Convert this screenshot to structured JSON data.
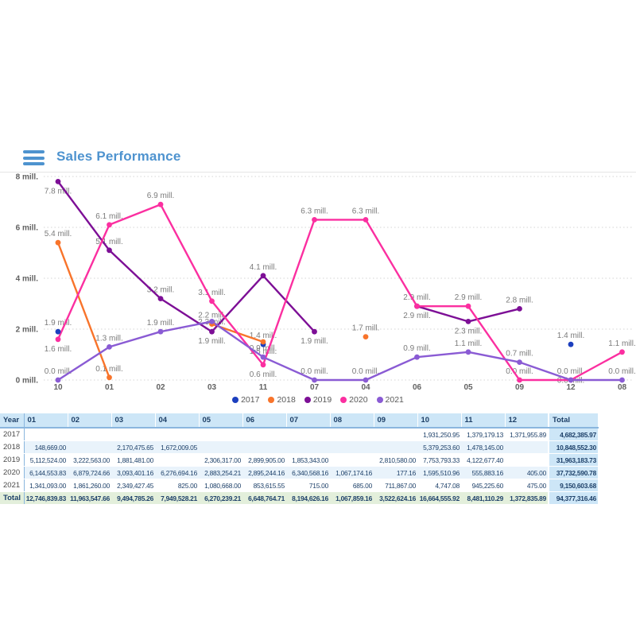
{
  "header": {
    "title": "Sales Performance",
    "accent_color": "#4e93cf"
  },
  "chart_data": {
    "type": "line",
    "title": "",
    "xlabel": "",
    "ylabel": "",
    "ylim": [
      0,
      8
    ],
    "grid": "dotted-horizontal",
    "legend_position": "bottom",
    "value_unit": "mill.",
    "categories": [
      "10",
      "01",
      "02",
      "03",
      "11",
      "07",
      "04",
      "06",
      "05",
      "09",
      "12",
      "08"
    ],
    "y_ticks": [
      {
        "v": 0,
        "label": "0 mill."
      },
      {
        "v": 2,
        "label": "2 mill."
      },
      {
        "v": 4,
        "label": "4 mill."
      },
      {
        "v": 6,
        "label": "6 mill."
      },
      {
        "v": 8,
        "label": "8 mill."
      }
    ],
    "series": [
      {
        "name": "2017",
        "color": "#1c3fbe",
        "values": [
          1.9,
          null,
          null,
          null,
          1.4,
          null,
          null,
          null,
          null,
          null,
          1.4,
          null
        ],
        "label_pos": [
          "a",
          null,
          null,
          null,
          "a",
          null,
          null,
          null,
          null,
          null,
          "a",
          null
        ]
      },
      {
        "name": "2018",
        "color": "#f8742b",
        "values": [
          5.4,
          0.1,
          null,
          2.2,
          1.5,
          null,
          1.7,
          null,
          null,
          null,
          null,
          null
        ],
        "label_pos": [
          "a",
          "a",
          null,
          "a",
          "b",
          null,
          "a",
          null,
          null,
          null,
          null,
          null
        ]
      },
      {
        "name": "2019",
        "color": "#7d0f96",
        "values": [
          7.8,
          5.1,
          3.2,
          1.9,
          4.1,
          1.9,
          null,
          2.9,
          2.3,
          2.8,
          null,
          null
        ],
        "label_pos": [
          "b",
          "a",
          "a",
          "b",
          "a",
          "b",
          null,
          "b",
          "b",
          "a",
          null,
          null
        ]
      },
      {
        "name": "2020",
        "color": "#fb2fa0",
        "values": [
          1.6,
          6.1,
          6.9,
          3.1,
          0.6,
          6.3,
          6.3,
          2.9,
          2.9,
          0.0,
          0.0,
          1.1
        ],
        "label_pos": [
          "b",
          "a",
          "a",
          "a",
          "b",
          "a",
          "a",
          "a",
          "a",
          "a",
          "o",
          "a"
        ]
      },
      {
        "name": "2021",
        "color": "#8a5bd4",
        "values": [
          0.0,
          1.3,
          1.9,
          2.3,
          0.9,
          0.0,
          0.0,
          0.9,
          1.1,
          0.7,
          0.0,
          0.0
        ],
        "label_pos": [
          "a",
          "a",
          "a",
          "o",
          "a",
          "a",
          "a",
          "a",
          "a",
          "a",
          "a",
          "a"
        ]
      }
    ]
  },
  "table": {
    "columns": [
      "Year",
      "01",
      "02",
      "03",
      "04",
      "05",
      "06",
      "07",
      "08",
      "09",
      "10",
      "11",
      "12",
      "Total"
    ],
    "rows": [
      {
        "label": "2017",
        "cells": [
          "",
          "",
          "",
          "",
          "",
          "",
          "",
          "",
          "",
          "1,931,250.95",
          "1,379,179.13",
          "1,371,955.89"
        ],
        "total": "4,682,385.97"
      },
      {
        "label": "2018",
        "cells": [
          "148,669.00",
          "",
          "2,170,475.65",
          "1,672,009.05",
          "",
          "",
          "",
          "",
          "",
          "5,379,253.60",
          "1,478,145.00",
          ""
        ],
        "total": "10,848,552.30"
      },
      {
        "label": "2019",
        "cells": [
          "5,112,524.00",
          "3,222,563.00",
          "1,881,481.00",
          "",
          "2,306,317.00",
          "2,899,905.00",
          "1,853,343.00",
          "",
          "2,810,580.00",
          "7,753,793.33",
          "4,122,677.40",
          ""
        ],
        "total": "31,963,183.73"
      },
      {
        "label": "2020",
        "cells": [
          "6,144,553.83",
          "6,879,724.66",
          "3,093,401.16",
          "6,276,694.16",
          "2,883,254.21",
          "2,895,244.16",
          "6,340,568.16",
          "1,067,174.16",
          "177.16",
          "1,595,510.96",
          "555,883.16",
          "405.00"
        ],
        "total": "37,732,590.78"
      },
      {
        "label": "2021",
        "cells": [
          "1,341,093.00",
          "1,861,260.00",
          "2,349,427.45",
          "825.00",
          "1,080,668.00",
          "853,615.55",
          "715.00",
          "685.00",
          "711,867.00",
          "4,747.08",
          "945,225.60",
          "475.00"
        ],
        "total": "9,150,603.68"
      }
    ],
    "total_row": {
      "label": "Total",
      "cells": [
        "12,746,839.83",
        "11,963,547.66",
        "9,494,785.26",
        "7,949,528.21",
        "6,270,239.21",
        "6,648,764.71",
        "8,194,626.16",
        "1,067,859.16",
        "3,522,624.16",
        "16,664,555.92",
        "8,481,110.29",
        "1,372,835.89"
      ],
      "total": "94,377,316.46"
    },
    "colors": {
      "header_bg": "#cde6f7",
      "stripe_bg": "#e9f3fb",
      "total_row_bg": "#e3efdb",
      "total_col_bg": "#cde6f7",
      "border_blue": "#8ab6de",
      "text": "#1d4069"
    }
  }
}
